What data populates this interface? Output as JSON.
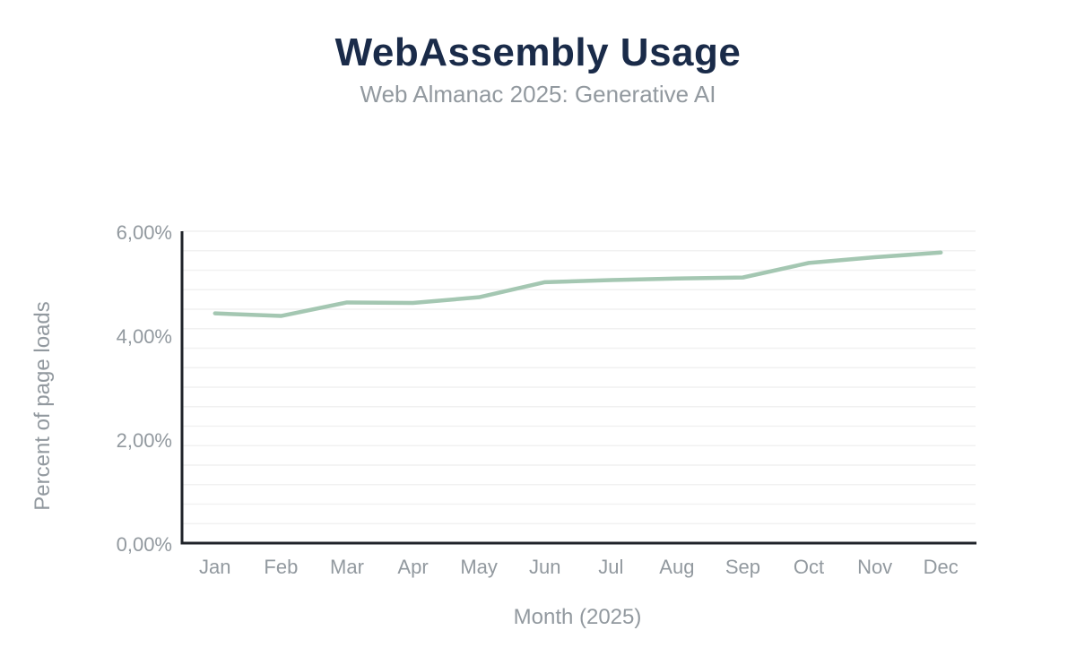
{
  "header": {
    "title": "WebAssembly Usage",
    "subtitle": "Web Almanac 2025: Generative AI"
  },
  "colors": {
    "title_color": "#1a2b49",
    "text_color": "#92999f",
    "line_color": "#a4c7b2",
    "axis_color": "#1f2329",
    "grid_color": "#f1f1f1"
  },
  "chart_data": {
    "type": "line",
    "title": "WebAssembly Usage",
    "subtitle": "Web Almanac 2025: Generative AI",
    "xlabel": "Month (2025)",
    "ylabel": "Percent of page loads",
    "categories": [
      "Jan",
      "Feb",
      "Mar",
      "Apr",
      "May",
      "Jun",
      "Jul",
      "Aug",
      "Sep",
      "Oct",
      "Nov",
      "Dec"
    ],
    "series": [
      {
        "name": "WebAssembly usage",
        "values": [
          4.42,
          4.37,
          4.63,
          4.62,
          4.73,
          5.02,
          5.06,
          5.09,
          5.11,
          5.39,
          5.5,
          5.59
        ]
      }
    ],
    "ylim": [
      0,
      6
    ],
    "y_ticks": [
      0,
      2,
      4,
      6
    ],
    "y_tick_labels": [
      "0,00%",
      "2,00%",
      "4,00%",
      "6,00%"
    ],
    "decimal_separator": ",",
    "grid": "faint horizontal minor gridlines",
    "legend": "none"
  }
}
